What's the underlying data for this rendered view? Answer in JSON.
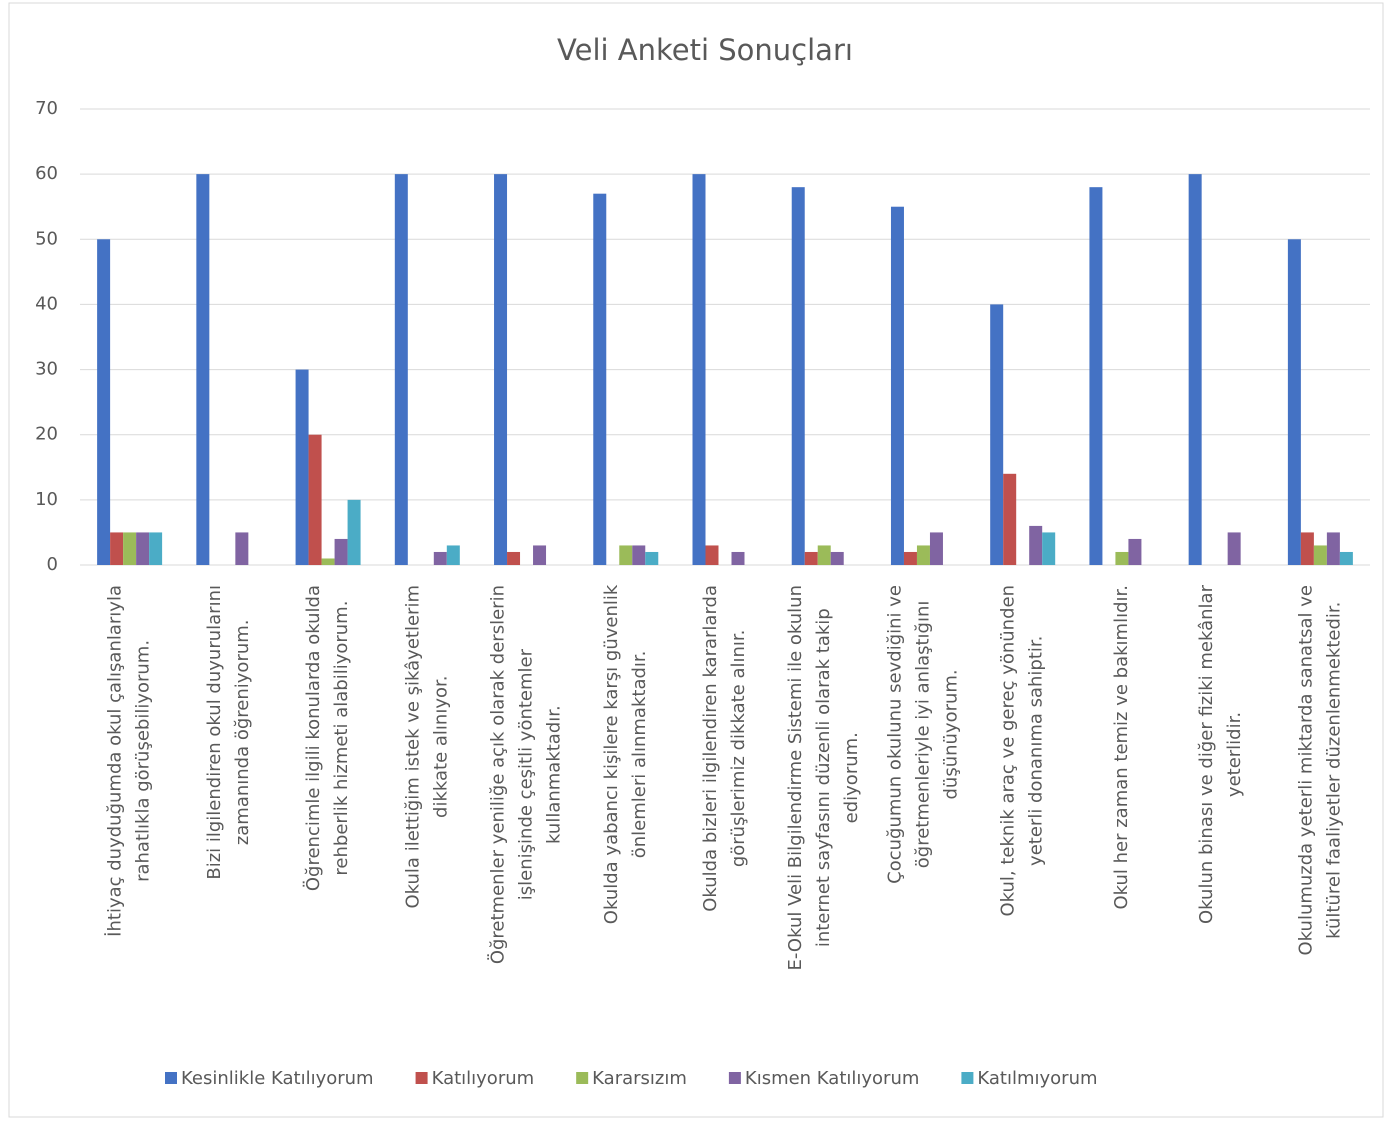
{
  "chart_data": {
    "type": "bar",
    "title": "Veli Anketi Sonuçları",
    "categories": [
      "İhtiyaç duyduğumda okul çalışanlarıyla\nrahatlıkla görüşebiliyorum.",
      "Bizi ilgilendiren okul duyurularını\nzamanında öğreniyorum.",
      "Öğrencimle ilgili konularda okulda\nrehberlik hizmeti alabiliyorum.",
      "Okula ilettiğim istek ve şikâyetlerim\ndikkate alınıyor.",
      "Öğretmenler yeniliğe açık olarak derslerin\nişlenişinde çeşitli yöntemler\nkullanmaktadır.",
      "Okulda yabancı kişilere karşı güvenlik\nönlemleri alınmaktadır.",
      "Okulda bizleri ilgilendiren kararlarda\ngörüşlerimiz dikkate alınır.",
      "E-Okul Veli Bilgilendirme Sistemi ile okulun\ninternet sayfasını düzenli olarak takip\nediyorum.",
      "Çocuğumun okulunu sevdiğini ve\nöğretmenleriyle iyi anlaştığını\ndüşünüyorum.",
      "Okul, teknik araç ve gereç yönünden\nyeterli donanıma sahiptir.",
      "Okul her zaman temiz ve bakımlıdır.",
      "Okulun binası ve diğer fiziki mekânlar\nyeterlidir.",
      "Okulumuzda yeterli miktarda sanatsal ve\nkültürel faaliyetler düzenlenmektedir."
    ],
    "series": [
      {
        "name": "Kesinlikle Katılıyorum",
        "color": "#4472c4",
        "values": [
          50,
          60,
          30,
          60,
          60,
          57,
          60,
          58,
          55,
          40,
          58,
          60,
          50
        ]
      },
      {
        "name": "Katılıyorum",
        "color": "#c0504d",
        "values": [
          5,
          0,
          20,
          0,
          2,
          0,
          3,
          2,
          2,
          14,
          0,
          0,
          5
        ]
      },
      {
        "name": "Kararsızım",
        "color": "#9bbb59",
        "values": [
          5,
          0,
          1,
          0,
          0,
          3,
          0,
          3,
          3,
          0,
          2,
          0,
          3
        ]
      },
      {
        "name": "Kısmen Katılıyorum",
        "color": "#8064a2",
        "values": [
          5,
          5,
          4,
          2,
          3,
          3,
          2,
          2,
          5,
          6,
          4,
          5,
          5
        ]
      },
      {
        "name": "Katılmıyorum",
        "color": "#4bacc6",
        "values": [
          5,
          0,
          10,
          3,
          0,
          2,
          0,
          0,
          0,
          5,
          0,
          0,
          2
        ]
      }
    ],
    "ylim": [
      0,
      70
    ],
    "yticks": [
      0,
      10,
      20,
      30,
      40,
      50,
      60,
      70
    ],
    "grid": true,
    "legend": "bottom"
  }
}
